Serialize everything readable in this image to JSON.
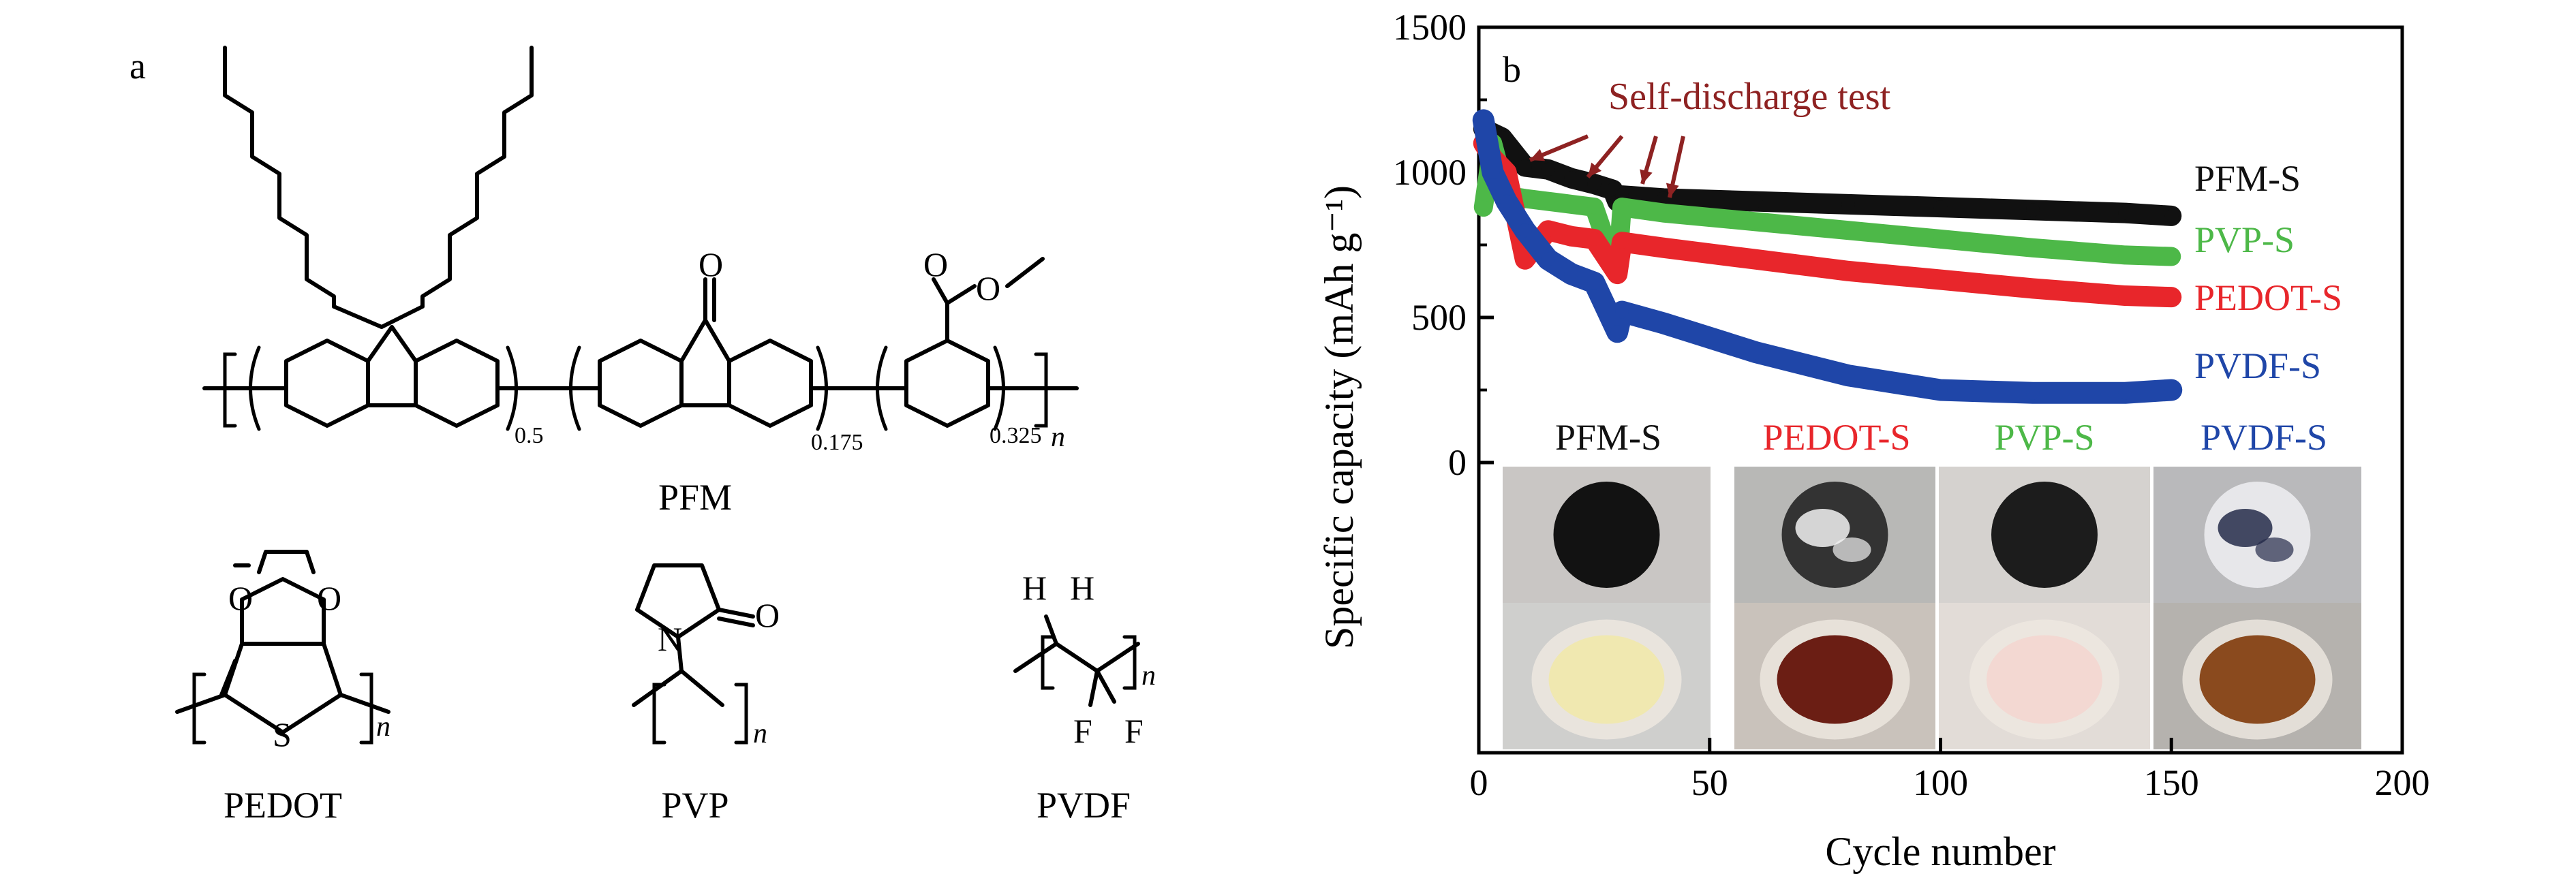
{
  "panel_a": {
    "label": "a",
    "pfm": {
      "name": "PFM",
      "sub_1": "0.5",
      "sub_2": "0.175",
      "sub_3": "0.325",
      "sub_n": "n",
      "atom_o1": "O",
      "atom_o2": "O",
      "atom_o3": "O"
    },
    "pedot": {
      "name": "PEDOT",
      "atom_o1": "O",
      "atom_o2": "O",
      "atom_s": "S",
      "sub_n": "n"
    },
    "pvp": {
      "name": "PVP",
      "atom_n": "N",
      "atom_o": "O",
      "sub_n": "n"
    },
    "pvdf": {
      "name": "PVDF",
      "atom_h1": "H",
      "atom_h2": "H",
      "atom_f1": "F",
      "atom_f2": "F",
      "sub_n": "n"
    }
  },
  "panel_b": {
    "label": "b",
    "annotation": "Self-discharge test",
    "photo_labels": [
      "PFM-S",
      "PEDOT-S",
      "PVP-S",
      "PVDF-S"
    ]
  },
  "chart_data": {
    "type": "scatter",
    "title": "",
    "xlabel": "Cycle number",
    "ylabel": "Specific capacity (mAh g⁻¹)",
    "xlim": [
      0,
      200
    ],
    "ylim": [
      -1000,
      1500
    ],
    "x_ticks": [
      0,
      50,
      100,
      150,
      200
    ],
    "y_ticks": [
      0,
      500,
      1000,
      1500
    ],
    "grid": false,
    "series": [
      {
        "name": "PFM-S",
        "color": "#111111",
        "x": [
          1,
          5,
          10,
          15,
          20,
          25,
          29,
          30,
          31,
          40,
          60,
          80,
          100,
          120,
          140,
          150
        ],
        "y": [
          1150,
          1120,
          1020,
          1010,
          980,
          960,
          940,
          900,
          920,
          910,
          900,
          890,
          880,
          870,
          860,
          850
        ]
      },
      {
        "name": "PVP-S",
        "color": "#4db848",
        "x": [
          1,
          3,
          6,
          10,
          15,
          20,
          25,
          30,
          31,
          40,
          60,
          80,
          100,
          120,
          140,
          150
        ],
        "y": [
          880,
          1100,
          920,
          910,
          900,
          890,
          880,
          650,
          880,
          860,
          830,
          800,
          770,
          740,
          715,
          710
        ]
      },
      {
        "name": "PEDOT-S",
        "color": "#e8262b",
        "x": [
          1,
          3,
          6,
          10,
          15,
          20,
          25,
          30,
          31,
          40,
          60,
          80,
          100,
          120,
          140,
          150
        ],
        "y": [
          1100,
          1050,
          1000,
          700,
          800,
          780,
          770,
          650,
          760,
          740,
          700,
          660,
          630,
          600,
          575,
          570
        ]
      },
      {
        "name": "PVDF-S",
        "color": "#1f46a8",
        "x": [
          1,
          3,
          6,
          10,
          15,
          20,
          25,
          30,
          31,
          40,
          60,
          80,
          100,
          120,
          140,
          150
        ],
        "y": [
          1180,
          1000,
          900,
          800,
          700,
          650,
          620,
          450,
          520,
          480,
          380,
          300,
          250,
          240,
          240,
          250
        ]
      }
    ],
    "legend": "right of last data point"
  },
  "colors": {
    "pfm": "#111111",
    "pvp": "#4db848",
    "pedot": "#e8262b",
    "pvdf": "#1f46a8",
    "arrow": "#8e2222"
  }
}
